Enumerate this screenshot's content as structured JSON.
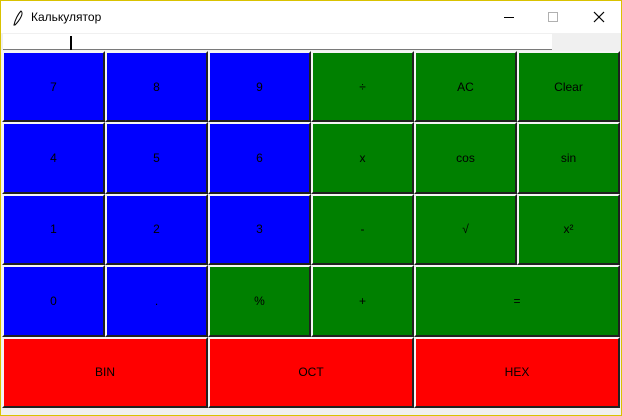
{
  "window": {
    "title": "Калькулятор"
  },
  "keypad": {
    "rows": [
      [
        {
          "label": "7",
          "color": "#0000ff"
        },
        {
          "label": "8",
          "color": "#0000ff"
        },
        {
          "label": "9",
          "color": "#0000ff"
        },
        {
          "label": "÷",
          "color": "#008000"
        },
        {
          "label": "AC",
          "color": "#008000"
        },
        {
          "label": "Clear",
          "color": "#008000"
        }
      ],
      [
        {
          "label": "4",
          "color": "#0000ff"
        },
        {
          "label": "5",
          "color": "#0000ff"
        },
        {
          "label": "6",
          "color": "#0000ff"
        },
        {
          "label": "x",
          "color": "#008000"
        },
        {
          "label": "cos",
          "color": "#008000"
        },
        {
          "label": "sin",
          "color": "#008000"
        }
      ],
      [
        {
          "label": "1",
          "color": "#0000ff"
        },
        {
          "label": "2",
          "color": "#0000ff"
        },
        {
          "label": "3",
          "color": "#0000ff"
        },
        {
          "label": "-",
          "color": "#008000"
        },
        {
          "label": "√",
          "color": "#008000"
        },
        {
          "label": "x²",
          "color": "#008000"
        }
      ],
      [
        {
          "label": "0",
          "color": "#0000ff"
        },
        {
          "label": ".",
          "color": "#0000ff"
        },
        {
          "label": "%",
          "color": "#008000"
        },
        {
          "label": "+",
          "color": "#008000"
        },
        {
          "label": "=",
          "color": "#008000"
        }
      ],
      [
        {
          "label": "BIN",
          "color": "#ff0000"
        },
        {
          "label": "OCT",
          "color": "#ff0000"
        },
        {
          "label": "HEX",
          "color": "#ff0000"
        }
      ]
    ]
  }
}
